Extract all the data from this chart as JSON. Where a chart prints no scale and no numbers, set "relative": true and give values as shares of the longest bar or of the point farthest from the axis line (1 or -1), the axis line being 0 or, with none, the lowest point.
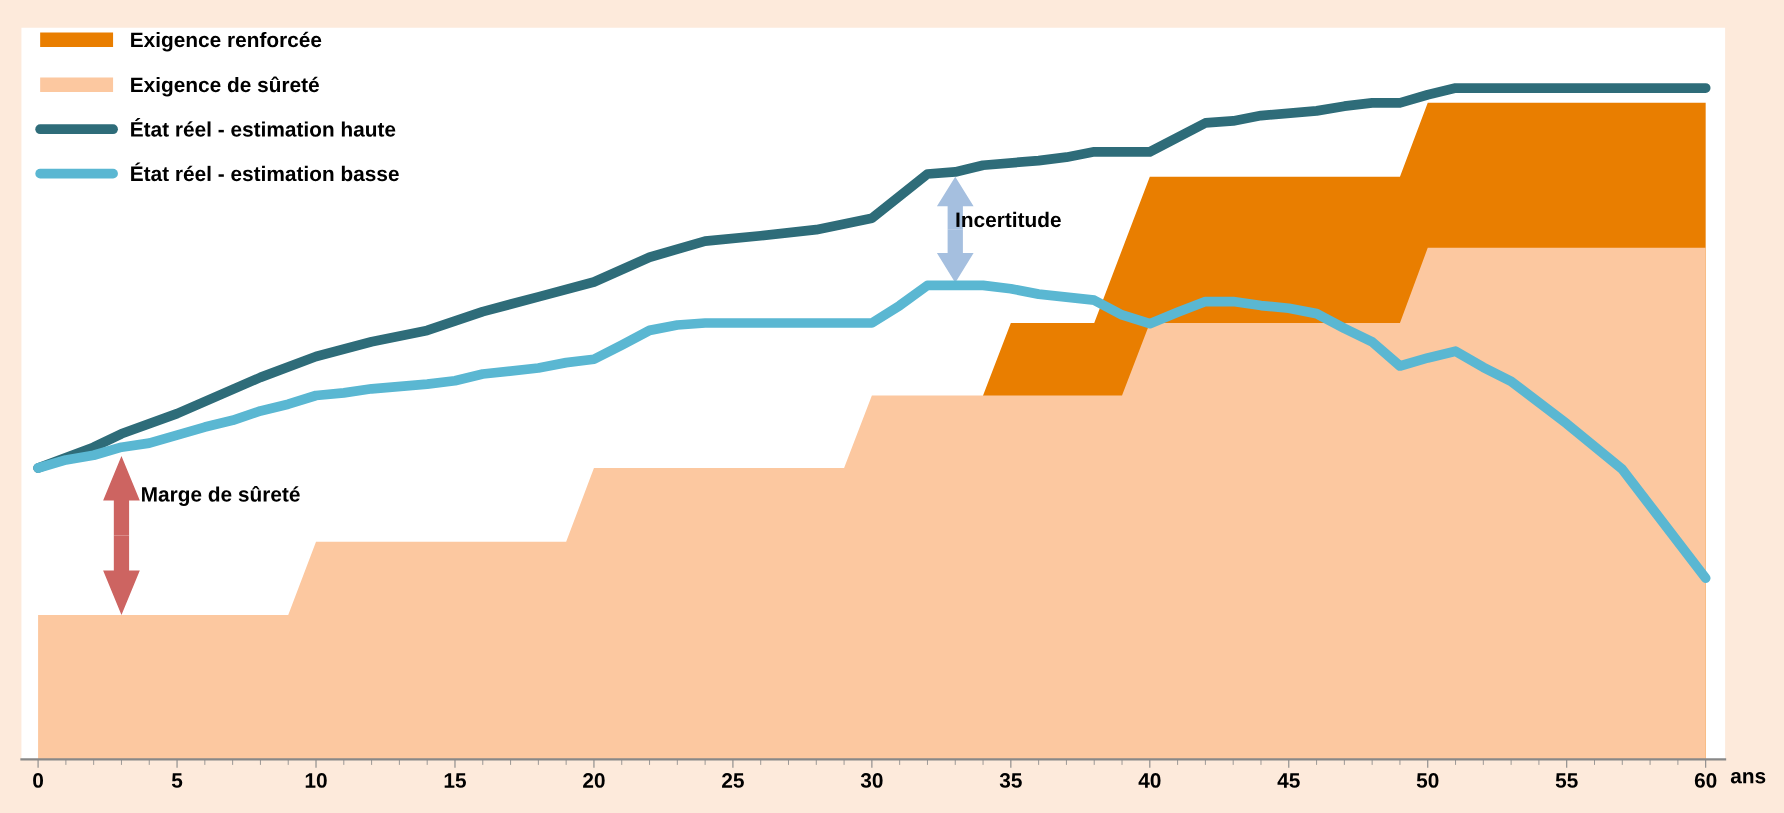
{
  "chart_data": {
    "type": "area",
    "relative": true,
    "xlabel": "ans",
    "legend": "top left",
    "tick_labels": "x",
    "xlim": [
      -0.6,
      60.7
    ],
    "xticks": [
      0,
      5,
      10,
      15,
      20,
      25,
      30,
      35,
      40,
      45,
      50,
      55,
      60
    ],
    "series": [
      {
        "name": "Exigence renforcée",
        "color": "#e97e00",
        "x": [
          34,
          35,
          38,
          40,
          49,
          50,
          60
        ],
        "values": [
          0.542,
          0.65,
          0.65,
          0.868,
          0.868,
          0.978,
          0.978
        ]
      },
      {
        "name": "Exigence de sûreté",
        "color": "#fcc8a0",
        "x": [
          0,
          9,
          10,
          19,
          20,
          29,
          30,
          39,
          40,
          49,
          50,
          60
        ],
        "values": [
          0.215,
          0.215,
          0.324,
          0.324,
          0.434,
          0.434,
          0.542,
          0.542,
          0.65,
          0.65,
          0.762,
          0.762
        ]
      },
      {
        "name": "État réel - estimation haute",
        "type": "line",
        "color": "#2e6c79",
        "x": [
          0,
          2,
          3,
          5,
          8,
          10,
          12,
          14,
          16,
          18,
          20,
          22,
          24,
          26,
          28,
          30,
          32,
          33,
          34,
          36,
          37,
          38,
          40,
          42,
          43,
          44,
          46,
          47,
          48,
          49,
          50,
          51,
          60
        ],
        "values": [
          0.434,
          0.465,
          0.485,
          0.515,
          0.569,
          0.6,
          0.622,
          0.639,
          0.667,
          0.689,
          0.711,
          0.748,
          0.772,
          0.78,
          0.789,
          0.806,
          0.872,
          0.875,
          0.885,
          0.892,
          0.897,
          0.905,
          0.905,
          0.948,
          0.951,
          0.959,
          0.966,
          0.973,
          0.978,
          0.978,
          0.99,
          1,
          1
        ]
      },
      {
        "name": "État réel - estimation basse",
        "type": "line",
        "color": "#5ab7d2",
        "x": [
          0,
          1,
          2,
          3,
          4,
          5,
          6,
          7,
          8,
          9,
          10,
          11,
          12,
          14,
          15,
          16,
          18,
          19,
          20,
          21,
          22,
          23,
          24,
          30,
          31,
          32,
          34,
          35,
          36,
          38,
          39,
          40,
          41,
          42,
          43,
          44,
          45,
          46,
          47,
          48,
          49,
          50,
          51,
          52,
          53,
          55,
          57,
          60
        ],
        "values": [
          0.434,
          0.446,
          0.453,
          0.465,
          0.471,
          0.483,
          0.495,
          0.505,
          0.519,
          0.529,
          0.542,
          0.546,
          0.552,
          0.559,
          0.564,
          0.574,
          0.583,
          0.591,
          0.596,
          0.617,
          0.639,
          0.647,
          0.65,
          0.65,
          0.676,
          0.706,
          0.706,
          0.701,
          0.693,
          0.684,
          0.662,
          0.649,
          0.666,
          0.682,
          0.682,
          0.676,
          0.672,
          0.664,
          0.642,
          0.622,
          0.586,
          0.598,
          0.608,
          0.584,
          0.563,
          0.5,
          0.432,
          0.27
        ]
      }
    ],
    "annotations": [
      "Incertitude",
      "Marge de sûreté"
    ]
  }
}
